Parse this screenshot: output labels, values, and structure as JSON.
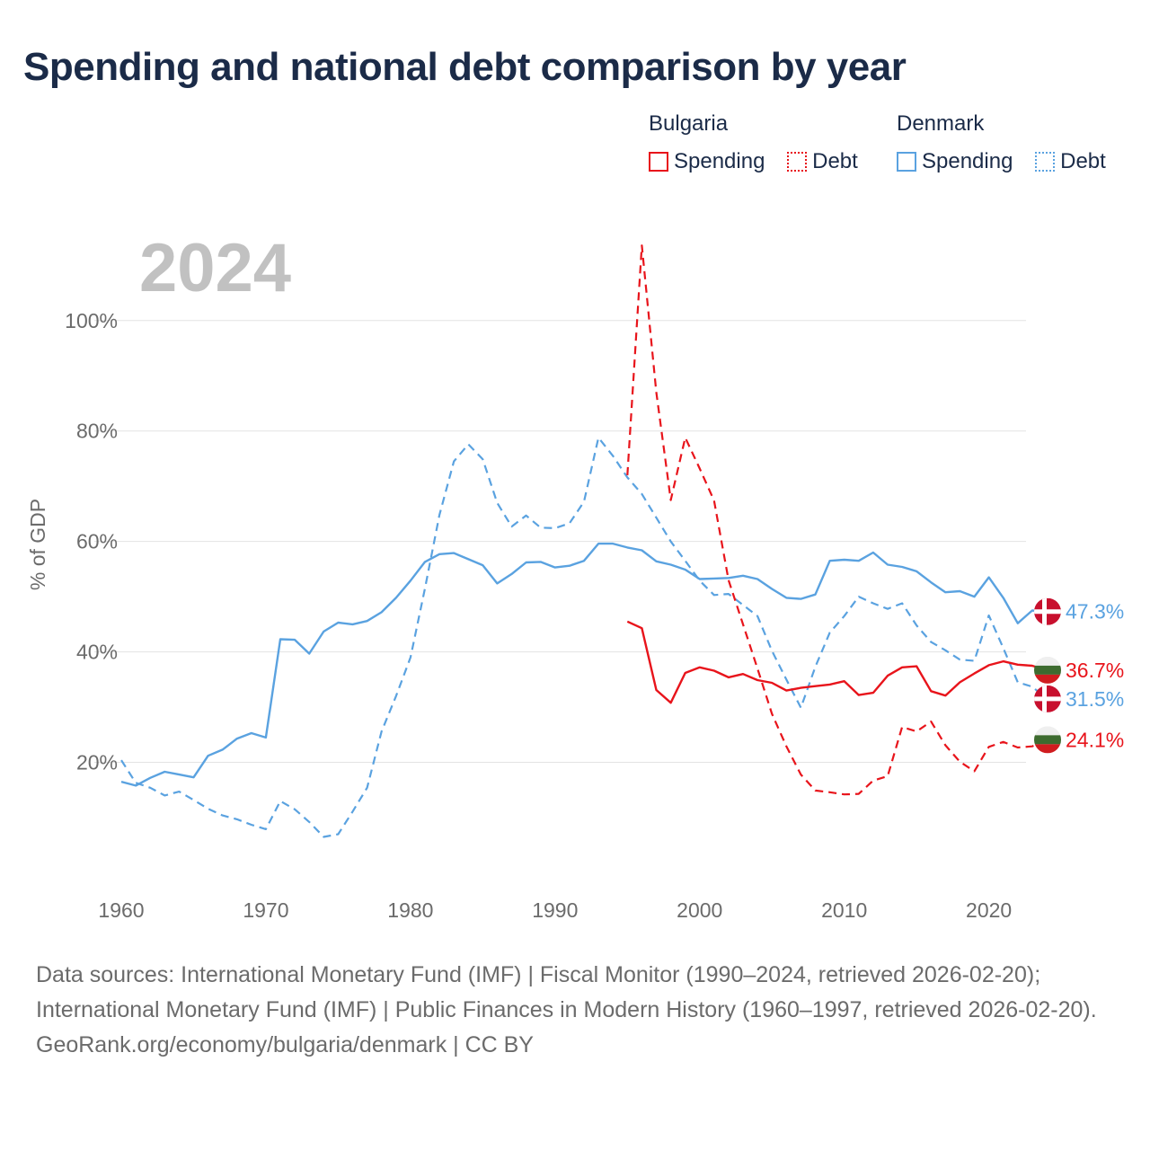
{
  "title": "Spending and national debt comparison by year",
  "legend": {
    "groups": [
      {
        "name": "Bulgaria",
        "color": "#e8141b",
        "items": [
          {
            "label": "Spending",
            "style": "solid"
          },
          {
            "label": "Debt",
            "style": "dotted"
          }
        ]
      },
      {
        "name": "Denmark",
        "color": "#5aa2e0",
        "items": [
          {
            "label": "Spending",
            "style": "solid"
          },
          {
            "label": "Debt",
            "style": "dotted"
          }
        ]
      }
    ]
  },
  "footer": {
    "sources": "Data sources: International Monetary Fund (IMF) | Fiscal Monitor (1990–2024, retrieved 2026-02-20); International Monetary Fund (IMF) | Public Finances in Modern History (1960–1997, retrieved 2026-02-20).",
    "attribution": "GeoRank.org/economy/bulgaria/denmark | CC BY"
  },
  "chart_data": {
    "type": "line",
    "title": "Spending and national debt comparison by year",
    "year_label": "2024",
    "xlabel": "",
    "ylabel": "% of GDP",
    "xlim": [
      1960,
      2024
    ],
    "ylim": [
      0,
      115
    ],
    "x_ticks": [
      1960,
      1970,
      1980,
      1990,
      2000,
      2010,
      2020
    ],
    "y_ticks": [
      {
        "value": 20,
        "label": "20%"
      },
      {
        "value": 40,
        "label": "40%"
      },
      {
        "value": 60,
        "label": "60%"
      },
      {
        "value": 80,
        "label": "80%"
      },
      {
        "value": 100,
        "label": "100%"
      }
    ],
    "grid": true,
    "series": [
      {
        "name": "Denmark Spending",
        "country": "Denmark",
        "kind": "Spending",
        "color": "#5aa2e0",
        "dashed": false,
        "end_label": "47.3%",
        "x": [
          1960,
          1961,
          1962,
          1963,
          1964,
          1965,
          1966,
          1967,
          1968,
          1969,
          1970,
          1971,
          1972,
          1973,
          1974,
          1975,
          1976,
          1977,
          1978,
          1979,
          1980,
          1981,
          1982,
          1983,
          1984,
          1985,
          1986,
          1987,
          1988,
          1989,
          1990,
          1991,
          1992,
          1993,
          1994,
          1995,
          1996,
          1997,
          1998,
          1999,
          2000,
          2001,
          2002,
          2003,
          2004,
          2005,
          2006,
          2007,
          2008,
          2009,
          2010,
          2011,
          2012,
          2013,
          2014,
          2015,
          2016,
          2017,
          2018,
          2019,
          2020,
          2021,
          2022,
          2023,
          2024
        ],
        "values": [
          16.5,
          15.8,
          17.2,
          18.3,
          17.8,
          17.3,
          21.2,
          22.3,
          24.3,
          25.3,
          24.5,
          42.3,
          42.2,
          39.7,
          43.7,
          45.3,
          45.0,
          45.6,
          47.2,
          49.8,
          52.9,
          56.3,
          57.7,
          57.9,
          56.8,
          55.7,
          52.4,
          54.1,
          56.2,
          56.3,
          55.3,
          55.6,
          56.5,
          59.6,
          59.6,
          58.9,
          58.4,
          56.4,
          55.8,
          54.9,
          53.2,
          53.3,
          53.4,
          53.8,
          53.2,
          51.4,
          49.8,
          49.6,
          50.4,
          56.5,
          56.7,
          56.5,
          58.0,
          55.8,
          55.4,
          54.6,
          52.6,
          50.8,
          51.0,
          50.0,
          53.5,
          49.8,
          45.2,
          47.5,
          47.3
        ]
      },
      {
        "name": "Denmark Debt",
        "country": "Denmark",
        "kind": "Debt",
        "color": "#5aa2e0",
        "dashed": true,
        "end_label": "31.5%",
        "x": [
          1960,
          1961,
          1962,
          1963,
          1964,
          1965,
          1966,
          1967,
          1968,
          1969,
          1970,
          1971,
          1972,
          1973,
          1974,
          1975,
          1976,
          1977,
          1978,
          1979,
          1980,
          1981,
          1982,
          1983,
          1984,
          1985,
          1986,
          1987,
          1988,
          1989,
          1990,
          1991,
          1992,
          1993,
          1994,
          1995,
          1996,
          1997,
          1998,
          1999,
          2000,
          2001,
          2002,
          2003,
          2004,
          2005,
          2006,
          2007,
          2008,
          2009,
          2010,
          2011,
          2012,
          2013,
          2014,
          2015,
          2016,
          2017,
          2018,
          2019,
          2020,
          2021,
          2022,
          2023,
          2024
        ],
        "values": [
          20.4,
          16.3,
          15.4,
          14.0,
          14.7,
          13.2,
          11.6,
          10.4,
          9.7,
          8.7,
          7.9,
          13.0,
          11.5,
          9.2,
          6.5,
          7.0,
          11.1,
          15.4,
          25.6,
          32.0,
          39.0,
          51.5,
          64.8,
          74.5,
          77.6,
          74.9,
          67.0,
          62.7,
          64.7,
          62.5,
          62.4,
          63.3,
          67.2,
          78.8,
          75.5,
          71.6,
          68.6,
          64.3,
          60.0,
          56.5,
          52.9,
          50.3,
          50.5,
          48.5,
          46.5,
          40.2,
          35.0,
          29.9,
          37.3,
          43.5,
          46.5,
          50.0,
          48.8,
          47.8,
          48.8,
          44.8,
          41.8,
          40.3,
          38.6,
          38.4,
          46.6,
          40.7,
          34.5,
          33.7,
          31.5
        ]
      },
      {
        "name": "Bulgaria Spending",
        "country": "Bulgaria",
        "kind": "Spending",
        "color": "#e8141b",
        "dashed": false,
        "end_label": "36.7%",
        "x": [
          1995,
          1996,
          1997,
          1998,
          1999,
          2000,
          2001,
          2002,
          2003,
          2004,
          2005,
          2006,
          2007,
          2008,
          2009,
          2010,
          2011,
          2012,
          2013,
          2014,
          2015,
          2016,
          2017,
          2018,
          2019,
          2020,
          2021,
          2022,
          2023,
          2024
        ],
        "values": [
          45.5,
          44.3,
          33.1,
          30.8,
          36.2,
          37.2,
          36.6,
          35.4,
          36.0,
          34.9,
          34.4,
          33.0,
          33.5,
          33.8,
          34.1,
          34.7,
          32.2,
          32.6,
          35.7,
          37.2,
          37.4,
          32.9,
          32.1,
          34.5,
          36.1,
          37.6,
          38.3,
          37.7,
          37.5,
          36.7
        ]
      },
      {
        "name": "Bulgaria Debt",
        "country": "Bulgaria",
        "kind": "Debt",
        "color": "#e8141b",
        "dashed": true,
        "end_label": "24.1%",
        "x": [
          1995,
          1996,
          1997,
          1998,
          1999,
          2000,
          2001,
          2002,
          2003,
          2004,
          2005,
          2006,
          2007,
          2008,
          2009,
          2010,
          2011,
          2012,
          2013,
          2014,
          2015,
          2016,
          2017,
          2018,
          2019,
          2020,
          2021,
          2022,
          2023,
          2024
        ],
        "values": [
          72.0,
          113.6,
          87.0,
          67.5,
          78.8,
          73.2,
          67.4,
          53.0,
          45.0,
          37.0,
          28.8,
          22.9,
          17.8,
          14.9,
          14.6,
          14.2,
          14.3,
          16.7,
          17.5,
          26.4,
          25.6,
          27.4,
          23.1,
          20.1,
          18.4,
          22.8,
          23.7,
          22.7,
          22.9,
          24.1
        ]
      }
    ]
  }
}
